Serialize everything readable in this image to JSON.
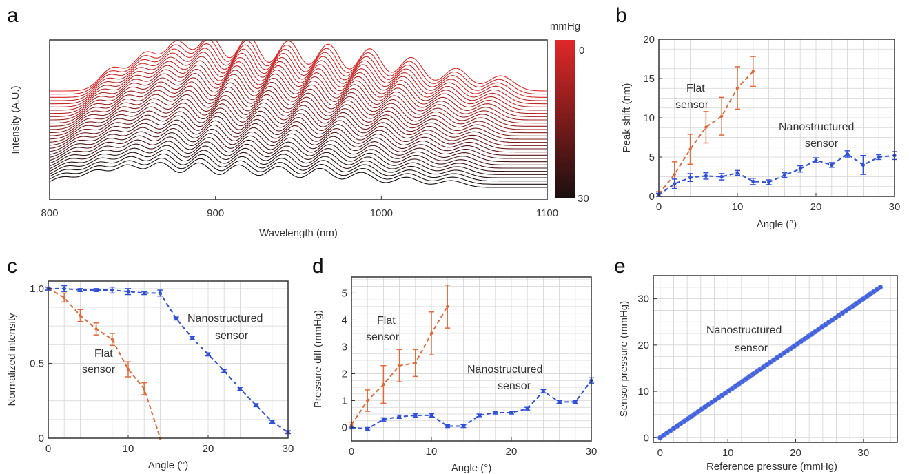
{
  "colors": {
    "flat": "#e06a3a",
    "nano": "#2f4fd8",
    "ridge_top": "#e02828",
    "ridge_bottom": "#1a0f0f"
  },
  "chart_data": [
    {
      "panel": "a",
      "type": "line",
      "xlabel": "Wavelength (nm)",
      "ylabel": "Intensity (A.U.)",
      "xlim": [
        800,
        1100
      ],
      "xticks": [
        800,
        900,
        1000,
        1100
      ],
      "colorbar": {
        "label": "mmHg",
        "range": [
          0,
          30
        ],
        "ticks": [
          0,
          30
        ],
        "top_color": "#e02828",
        "bottom_color": "#1a0f0f"
      },
      "traces": 31,
      "peaks_nm": [
        838,
        858,
        877,
        897,
        920,
        944,
        968,
        993,
        1018,
        1045,
        1072
      ],
      "peak_heights": [
        0.42,
        0.68,
        0.88,
        1.0,
        1.0,
        0.92,
        0.86,
        0.78,
        0.62,
        0.42,
        0.28
      ]
    },
    {
      "panel": "b",
      "type": "line",
      "xlabel": "Angle (°)",
      "ylabel": "Peak shift (nm)",
      "xlim": [
        0,
        30
      ],
      "ylim": [
        0,
        20
      ],
      "xticks": [
        0,
        10,
        20,
        30
      ],
      "yticks": [
        0,
        5,
        10,
        15,
        20
      ],
      "grid": true,
      "series": [
        {
          "name": "Flat sensor",
          "annotation": [
            "Flat",
            "sensor"
          ],
          "x": [
            0,
            2,
            4,
            6,
            8,
            10,
            12
          ],
          "y": [
            0.3,
            2.8,
            6.0,
            8.8,
            10.2,
            13.8,
            15.9
          ],
          "err": [
            0.3,
            1.6,
            1.9,
            2.0,
            2.4,
            2.7,
            1.9
          ]
        },
        {
          "name": "Nanostructured sensor",
          "annotation": [
            "Nanostructured",
            "sensor"
          ],
          "x": [
            0,
            2,
            4,
            6,
            8,
            10,
            12,
            14,
            16,
            18,
            20,
            22,
            24,
            26,
            28,
            30
          ],
          "y": [
            0.2,
            1.6,
            2.4,
            2.6,
            2.5,
            3.0,
            1.9,
            1.8,
            2.7,
            3.5,
            4.6,
            4.0,
            5.4,
            4.0,
            5.0,
            5.2
          ],
          "err": [
            0.2,
            0.6,
            0.5,
            0.4,
            0.4,
            0.3,
            0.4,
            0.3,
            0.3,
            0.4,
            0.3,
            0.3,
            0.4,
            1.2,
            0.3,
            0.5
          ]
        }
      ]
    },
    {
      "panel": "c",
      "type": "line",
      "xlabel": "Angle (°)",
      "ylabel": "Normalized intensity",
      "xlim": [
        0,
        30
      ],
      "ylim": [
        0,
        1.05
      ],
      "xticks": [
        0,
        10,
        20,
        30
      ],
      "yticks": [
        0,
        0.5,
        1.0
      ],
      "ytick_labels": [
        "0",
        "0.5",
        "1.0"
      ],
      "grid": true,
      "series": [
        {
          "name": "Flat sensor",
          "annotation": [
            "Flat",
            "sensor"
          ],
          "x": [
            0,
            2,
            4,
            6,
            8,
            10,
            12,
            14
          ],
          "y": [
            1.0,
            0.94,
            0.82,
            0.73,
            0.66,
            0.46,
            0.33,
            0.0
          ],
          "err": [
            0.01,
            0.03,
            0.04,
            0.04,
            0.04,
            0.05,
            0.04,
            0.0
          ]
        },
        {
          "name": "Nanostructured sensor",
          "annotation": [
            "Nanostructured",
            "sensor"
          ],
          "x": [
            0,
            2,
            4,
            6,
            8,
            10,
            12,
            14,
            16,
            18,
            20,
            22,
            24,
            26,
            28,
            30
          ],
          "y": [
            1.0,
            1.0,
            0.99,
            0.99,
            0.99,
            0.98,
            0.97,
            0.97,
            0.8,
            0.67,
            0.56,
            0.45,
            0.33,
            0.22,
            0.11,
            0.04
          ],
          "err": [
            0.01,
            0.02,
            0.01,
            0.01,
            0.02,
            0.02,
            0.01,
            0.02,
            0.01,
            0.01,
            0.01,
            0.01,
            0.01,
            0.01,
            0.01,
            0.01
          ]
        }
      ]
    },
    {
      "panel": "d",
      "type": "line",
      "xlabel": "Angle (°)",
      "ylabel": "Pressure diff (mmHg)",
      "xlim": [
        0,
        30
      ],
      "ylim": [
        -0.5,
        5.6
      ],
      "xticks": [
        0,
        10,
        20,
        30
      ],
      "yticks": [
        0,
        1,
        2,
        3,
        4,
        5
      ],
      "grid": true,
      "series": [
        {
          "name": "Flat sensor",
          "annotation": [
            "Flat",
            "sensor"
          ],
          "x": [
            0,
            2,
            4,
            6,
            8,
            10,
            12
          ],
          "y": [
            0.1,
            1.0,
            1.6,
            2.3,
            2.4,
            3.5,
            4.5
          ],
          "err": [
            0.1,
            0.4,
            0.7,
            0.6,
            0.5,
            0.8,
            0.8
          ]
        },
        {
          "name": "Nanostructured sensor",
          "annotation": [
            "Nanostructured",
            "sensor"
          ],
          "x": [
            0,
            2,
            4,
            6,
            8,
            10,
            12,
            14,
            16,
            18,
            20,
            22,
            24,
            26,
            28,
            30
          ],
          "y": [
            0.0,
            -0.05,
            0.3,
            0.4,
            0.45,
            0.45,
            0.05,
            0.05,
            0.45,
            0.55,
            0.55,
            0.7,
            1.35,
            0.95,
            0.95,
            1.75
          ],
          "err": [
            0.05,
            0.05,
            0.06,
            0.06,
            0.06,
            0.06,
            0.05,
            0.05,
            0.05,
            0.05,
            0.05,
            0.05,
            0.06,
            0.05,
            0.05,
            0.1
          ]
        }
      ]
    },
    {
      "panel": "e",
      "type": "scatter",
      "xlabel": "Reference pressure (mmHg)",
      "ylabel": "Sensor pressure (mmHg)",
      "xlim": [
        -1,
        35
      ],
      "ylim": [
        -1,
        35
      ],
      "xticks": [
        0,
        10,
        20,
        30
      ],
      "yticks": [
        0,
        10,
        20,
        30
      ],
      "grid": true,
      "series": [
        {
          "name": "Nanostructured sensor",
          "annotation": [
            "Nanostructured",
            "sensor"
          ],
          "x": [
            0,
            32.5
          ],
          "y": [
            0,
            32.5
          ]
        }
      ]
    }
  ]
}
